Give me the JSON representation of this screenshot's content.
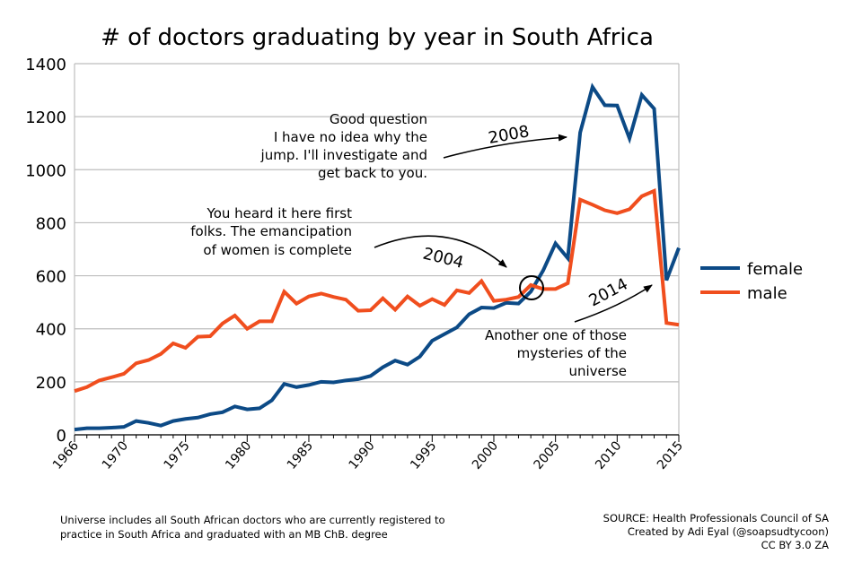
{
  "chart_data": {
    "type": "line",
    "title": "# of doctors graduating by year in South Africa",
    "xlabel": "",
    "ylabel": "",
    "xlim": [
      1966,
      2015
    ],
    "ylim": [
      0,
      1400
    ],
    "yticks": [
      0,
      200,
      400,
      600,
      800,
      1000,
      1200,
      1400
    ],
    "xticks": [
      1966,
      1970,
      1975,
      1980,
      1985,
      1990,
      1995,
      2000,
      2005,
      2010,
      2015
    ],
    "grid": "horizontal",
    "legend": "right",
    "x": [
      1966,
      1967,
      1968,
      1969,
      1970,
      1971,
      1972,
      1973,
      1974,
      1975,
      1976,
      1977,
      1978,
      1979,
      1980,
      1981,
      1982,
      1983,
      1984,
      1985,
      1986,
      1987,
      1988,
      1989,
      1990,
      1991,
      1992,
      1993,
      1994,
      1995,
      1996,
      1997,
      1998,
      1999,
      2000,
      2001,
      2002,
      2003,
      2004,
      2005,
      2006,
      2007,
      2008,
      2009,
      2010,
      2011,
      2012,
      2013,
      2014,
      2015
    ],
    "series": [
      {
        "name": "female",
        "color": "#0c4a86",
        "values": [
          20,
          25,
          25,
          27,
          30,
          52,
          45,
          35,
          52,
          60,
          65,
          78,
          85,
          107,
          96,
          100,
          130,
          192,
          180,
          188,
          200,
          198,
          205,
          210,
          222,
          255,
          280,
          265,
          295,
          355,
          380,
          405,
          455,
          480,
          478,
          498,
          495,
          540,
          620,
          722,
          666,
          1140,
          1312,
          1243,
          1242,
          1118,
          1282,
          1230,
          583,
          705
        ]
      },
      {
        "name": "male",
        "color": "#f04e1e",
        "values": [
          165,
          180,
          205,
          217,
          230,
          270,
          282,
          305,
          345,
          328,
          370,
          372,
          420,
          450,
          400,
          428,
          428,
          540,
          495,
          522,
          533,
          520,
          510,
          468,
          470,
          515,
          472,
          522,
          487,
          512,
          490,
          545,
          535,
          580,
          505,
          510,
          520,
          565,
          550,
          550,
          572,
          887,
          868,
          847,
          836,
          851,
          900,
          920,
          422,
          415
        ]
      }
    ],
    "annotations": [
      {
        "id": "q2008",
        "year_label": "2008",
        "lines": [
          "Good question",
          "I have no idea why the",
          "jump. I'll investigate and",
          "get back to you."
        ]
      },
      {
        "id": "q2004",
        "year_label": "2004",
        "lines": [
          "You heard it here first",
          "folks. The emancipation",
          "of women is complete"
        ]
      },
      {
        "id": "q2014",
        "year_label": "2014",
        "lines": [
          "Another one of those",
          "mysteries of the",
          "universe"
        ]
      }
    ]
  },
  "footer": {
    "note": [
      "Universe includes all South African doctors who are currently registered to",
      "practice in South Africa and graduated with an MB ChB. degree"
    ],
    "source": [
      "SOURCE: Health Professionals Council of SA",
      "Created by Adi Eyal (@soapsudtycoon)",
      "CC BY 3.0 ZA"
    ]
  }
}
